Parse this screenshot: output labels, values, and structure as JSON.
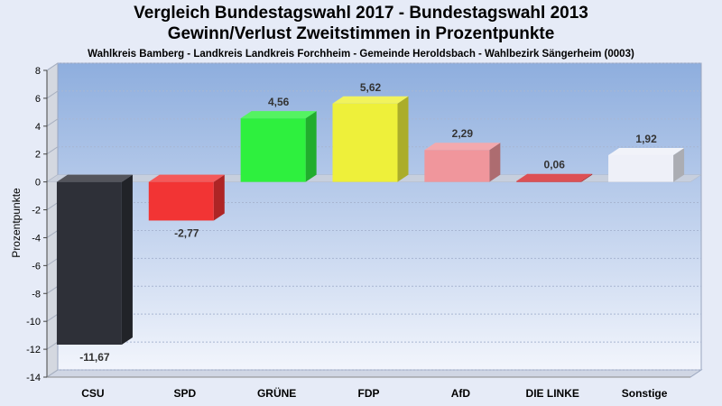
{
  "chart_data": {
    "type": "bar",
    "title": "Vergleich Bundestagswahl 2017 - Bundestagswahl 2013",
    "subtitle": "Gewinn/Verlust Zweitstimmen in Prozentpunkte",
    "caption": "Wahlkreis Bamberg - Landkreis Landkreis Forchheim - Gemeinde Heroldsbach - Wahlbezirk Sängerheim (0003)",
    "ylabel": "Prozentpunkte",
    "xlabel": "",
    "ylim": [
      -14,
      8
    ],
    "yticks": [
      8,
      6,
      4,
      2,
      0,
      -2,
      -4,
      -6,
      -8,
      -10,
      -12,
      -14
    ],
    "categories": [
      "CSU",
      "SPD",
      "GRÜNE",
      "FDP",
      "AfD",
      "DIE LINKE",
      "Sonstige"
    ],
    "values": [
      -11.67,
      -2.77,
      4.56,
      5.62,
      2.29,
      0.06,
      1.92
    ],
    "value_labels": [
      "-11,67",
      "-2,77",
      "4,56",
      "5,62",
      "2,29",
      "0,06",
      "1,92"
    ],
    "colors": [
      "#2e3038",
      "#f23434",
      "#2ef03e",
      "#eef03a",
      "#f0969c",
      "#d62a2e",
      "#eef0f8"
    ],
    "grid": true,
    "legend": "none"
  }
}
